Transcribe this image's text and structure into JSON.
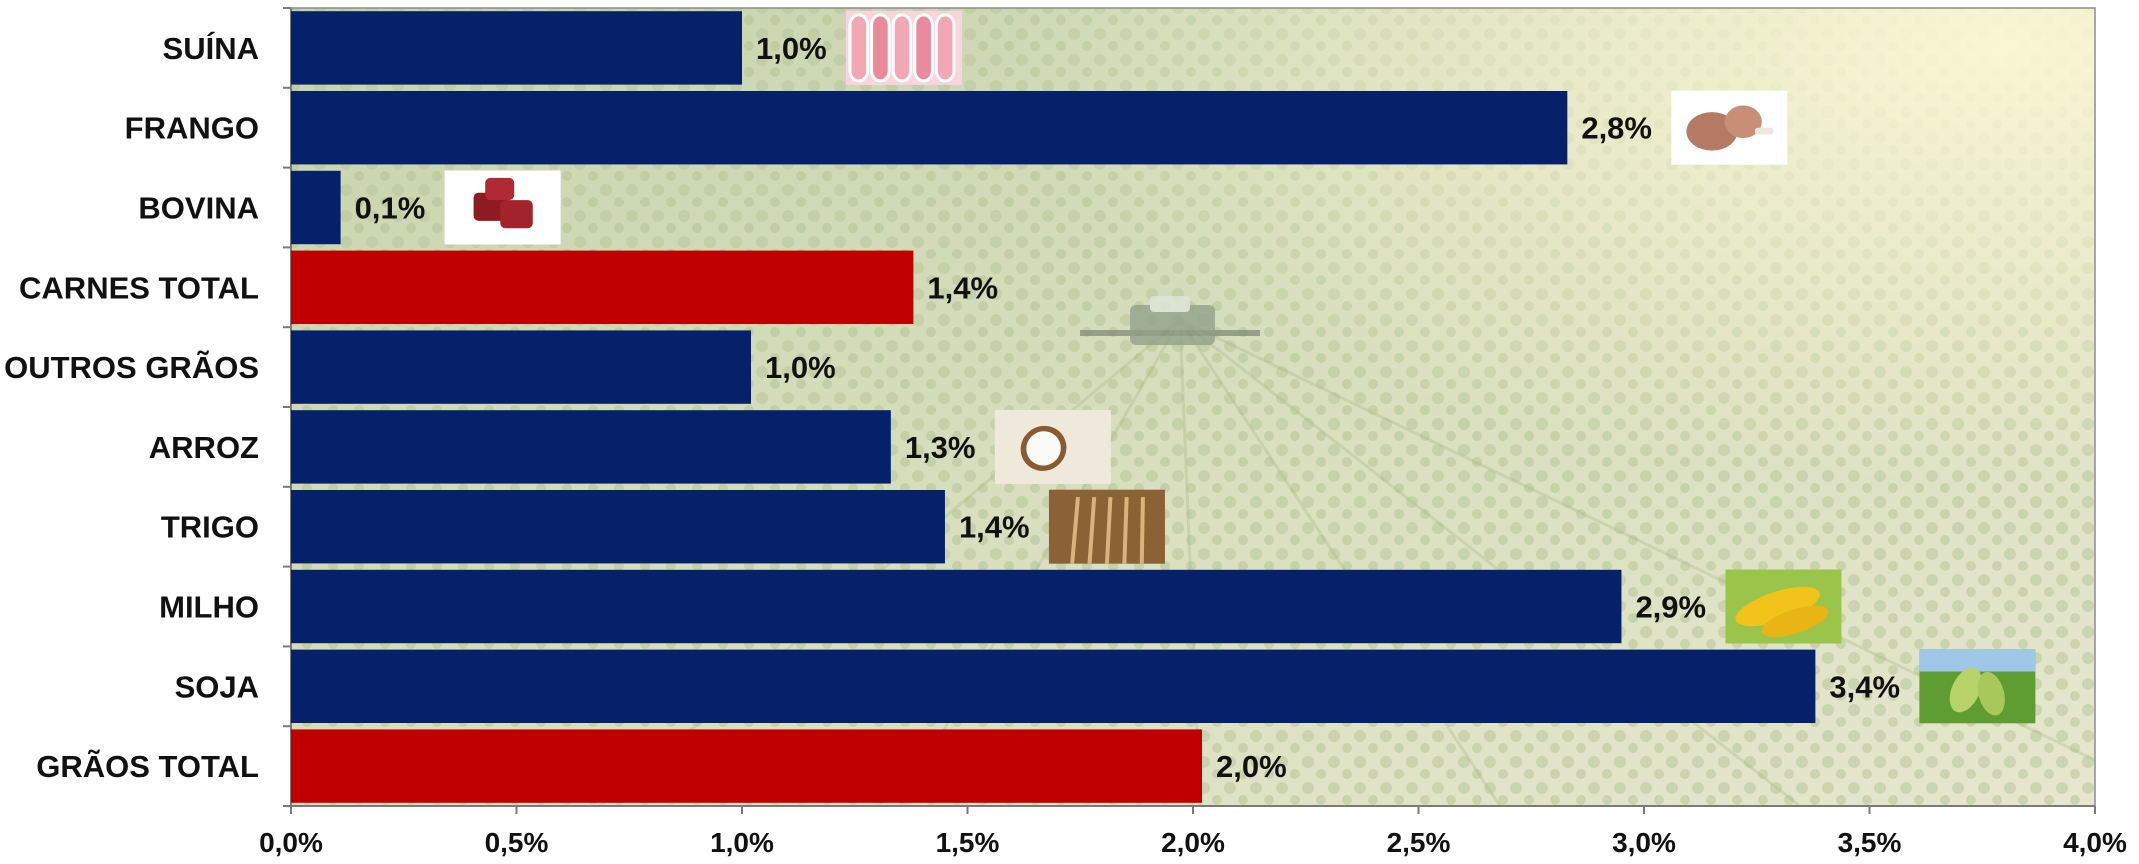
{
  "chart_data": {
    "type": "bar",
    "orientation": "horizontal",
    "categories": [
      "SUÍNA",
      "FRANGO",
      "BOVINA",
      "CARNES TOTAL",
      "OUTROS GRÃOS",
      "ARROZ",
      "TRIGO",
      "MILHO",
      "SOJA",
      "GRÃOS TOTAL"
    ],
    "values": [
      1.0,
      2.83,
      0.11,
      1.38,
      1.02,
      1.33,
      1.45,
      2.95,
      3.38,
      2.02
    ],
    "value_labels": [
      "1,0%",
      "2,8%",
      "0,1%",
      "1,4%",
      "1,0%",
      "1,3%",
      "1,4%",
      "2,9%",
      "3,4%",
      "2,0%"
    ],
    "highlight": [
      false,
      false,
      false,
      true,
      false,
      false,
      false,
      false,
      false,
      true
    ],
    "colors": {
      "bar": "#05216a",
      "total": "#c00000"
    },
    "icons": [
      "pork-meat-icon",
      "chicken-leg-icon",
      "beef-cubes-icon",
      null,
      null,
      "rice-spoon-icon",
      "wheat-icon",
      "corn-icon",
      "soybean-icon",
      null
    ],
    "xlim": [
      0,
      4.0
    ],
    "xticks": [
      0,
      0.5,
      1.0,
      1.5,
      2.0,
      2.5,
      3.0,
      3.5,
      4.0
    ],
    "xtick_labels": [
      "0,0%",
      "0,5%",
      "1,0%",
      "1,5%",
      "2,0%",
      "2,5%",
      "3,0%",
      "3,5%",
      "4,0%"
    ],
    "grid": false,
    "background": "crop-field-photo",
    "title": "",
    "xlabel": "",
    "ylabel": ""
  }
}
